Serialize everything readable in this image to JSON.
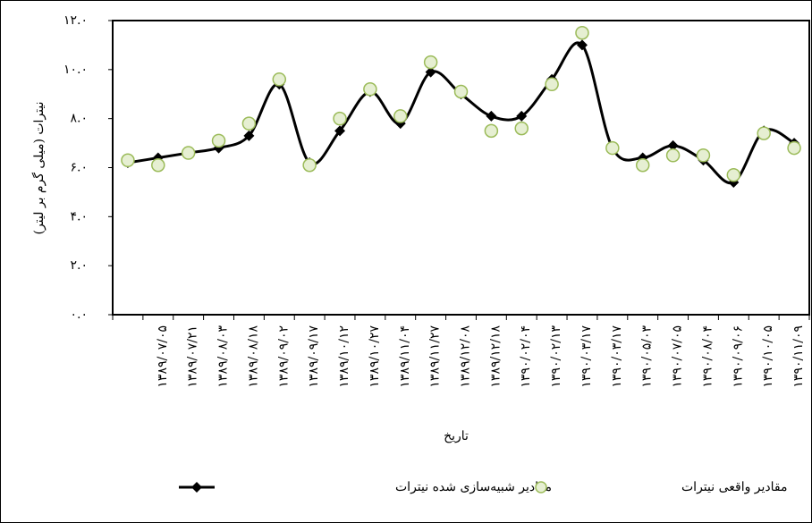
{
  "chart_data": {
    "type": "line",
    "y_label": "نیترات (میلی گرم بر لیتر)",
    "x_label": "تاریخ",
    "categories": [
      null,
      "۱۳۸۹/۰۷/۰۵",
      "۱۳۸۹/۰۷/۲۱",
      "۱۳۸۹/۰۸/۰۳",
      "۱۳۸۹/۰۸/۱۸",
      "۱۳۸۹/۰۹/۰۲",
      "۱۳۸۹/۰۹/۱۷",
      "۱۳۸۹/۱۰/۱۲",
      "۱۳۸۹/۱۰/۲۷",
      "۱۳۸۹/۱۱/۰۴",
      "۱۳۸۹/۱۱/۲۷",
      "۱۳۸۹/۱۲/۰۸",
      "۱۳۸۹/۱۲/۱۸",
      "۱۳۹۰/۰۲/۰۴",
      "۱۳۹۰/۰۲/۱۳",
      "۱۳۹۰/۰۳/۱۷",
      "۱۳۹۰/۰۳/۱۷",
      "۱۳۹۰/۰۵/۰۳",
      "۱۳۹۰/۰۷/۰۵",
      "۱۳۹۰/۰۸/۰۴",
      "۱۳۹۰/۰۹/۰۶",
      "۱۳۹۰/۱۰/۰۵",
      "۱۳۹۰/۱۱/۰۹"
    ],
    "series": [
      {
        "name": "مقادیر شبیه‌سازی شده نیترات",
        "color": "#000000",
        "marker": "diamond",
        "smooth": true,
        "values": [
          6.2,
          6.4,
          6.6,
          6.8,
          7.3,
          9.4,
          6.2,
          7.5,
          9.1,
          7.8,
          9.9,
          9.0,
          8.1,
          8.1,
          9.6,
          11.0,
          6.8,
          6.4,
          6.9,
          6.3,
          5.4,
          7.5,
          7.0
        ]
      },
      {
        "name": "مقادیر واقعی نیترات",
        "color": "#9bbb59",
        "fill": "#e6efd2",
        "marker": "circle",
        "values": [
          6.3,
          6.1,
          6.6,
          7.1,
          7.8,
          9.6,
          6.1,
          8.0,
          9.2,
          8.1,
          10.3,
          9.1,
          7.5,
          7.6,
          9.4,
          11.5,
          6.8,
          6.1,
          6.5,
          6.5,
          5.7,
          7.4,
          6.8
        ]
      }
    ],
    "ylim": [
      0,
      12
    ],
    "yticks": [
      {
        "value": 0,
        "label": "۰.۰"
      },
      {
        "value": 2,
        "label": "۲.۰"
      },
      {
        "value": 4,
        "label": "۴.۰"
      },
      {
        "value": 6,
        "label": "۶.۰"
      },
      {
        "value": 8,
        "label": "۸.۰"
      },
      {
        "value": 10,
        "label": "۱۰.۰"
      },
      {
        "value": 12,
        "label": "۱۲.۰"
      }
    ]
  }
}
